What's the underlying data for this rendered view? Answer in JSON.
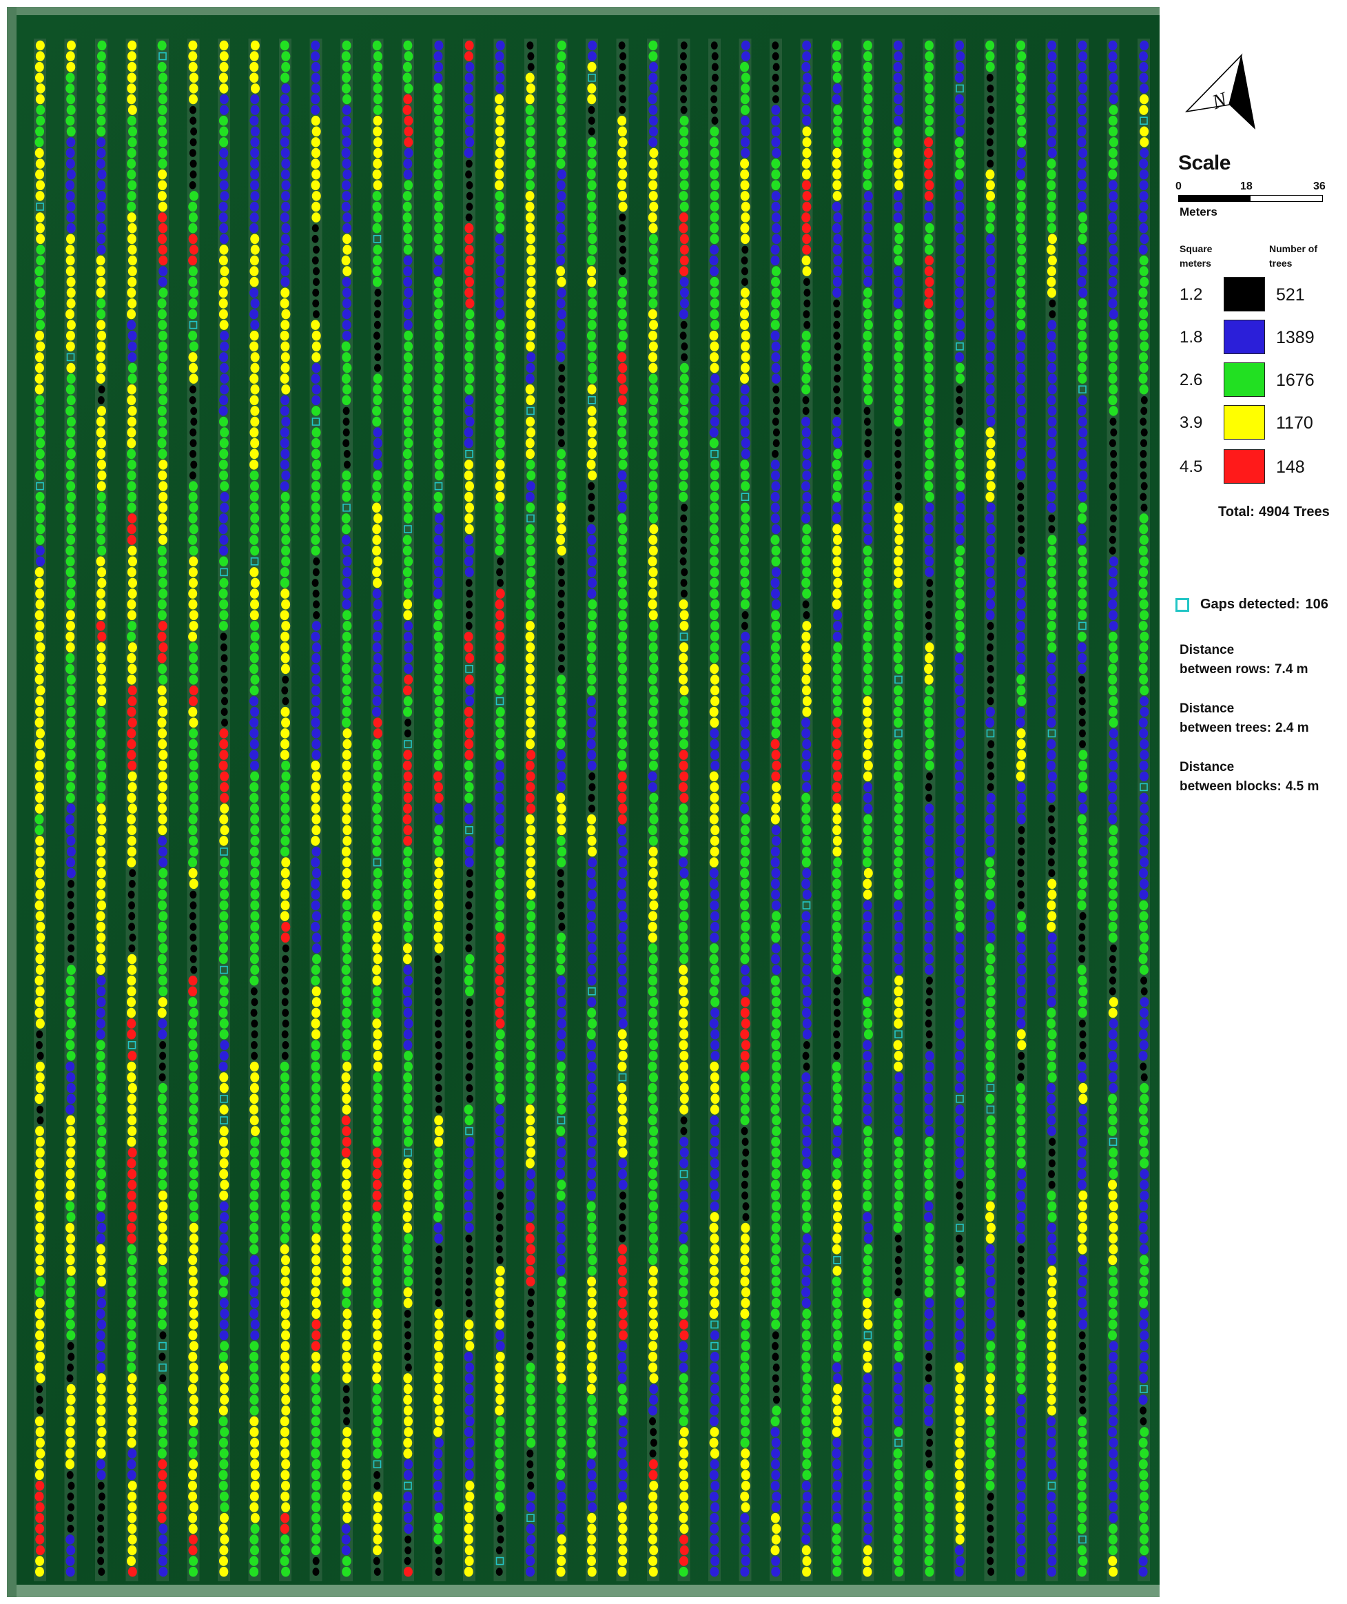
{
  "legend": {
    "north_label": "N",
    "scale_title": "Scale",
    "scale_ticks": [
      "0",
      "18",
      "36"
    ],
    "scale_unit": "Meters",
    "col_area_header": "Square meters",
    "col_count_header": "Number of trees",
    "classes": [
      {
        "area": "1.2",
        "count": "521",
        "color": "#000000"
      },
      {
        "area": "1.8",
        "count": "1389",
        "color": "#2b1fd9"
      },
      {
        "area": "2.6",
        "count": "1676",
        "color": "#22e022"
      },
      {
        "area": "3.9",
        "count": "1170",
        "color": "#ffff00"
      },
      {
        "area": "4.5",
        "count": "148",
        "color": "#ff1a1a"
      }
    ],
    "total_label": "Total:",
    "total_value": "4904",
    "total_unit": "Trees",
    "gaps_label": "Gaps detected:",
    "gaps_value": "106",
    "gap_color": "#22c5c5",
    "stats": [
      {
        "line1": "Distance",
        "line2": "between rows:",
        "value": "7.4 m"
      },
      {
        "line1": "Distance",
        "line2": "between trees:",
        "value": "2.4 m"
      },
      {
        "line1": "Distance",
        "line2": "between blocks:",
        "value": "4.5 m"
      }
    ]
  },
  "map": {
    "background_color": "#0c4a22",
    "row_color": "#0a3d1c",
    "soil_color": "#3a6a48",
    "rows": 37
  }
}
